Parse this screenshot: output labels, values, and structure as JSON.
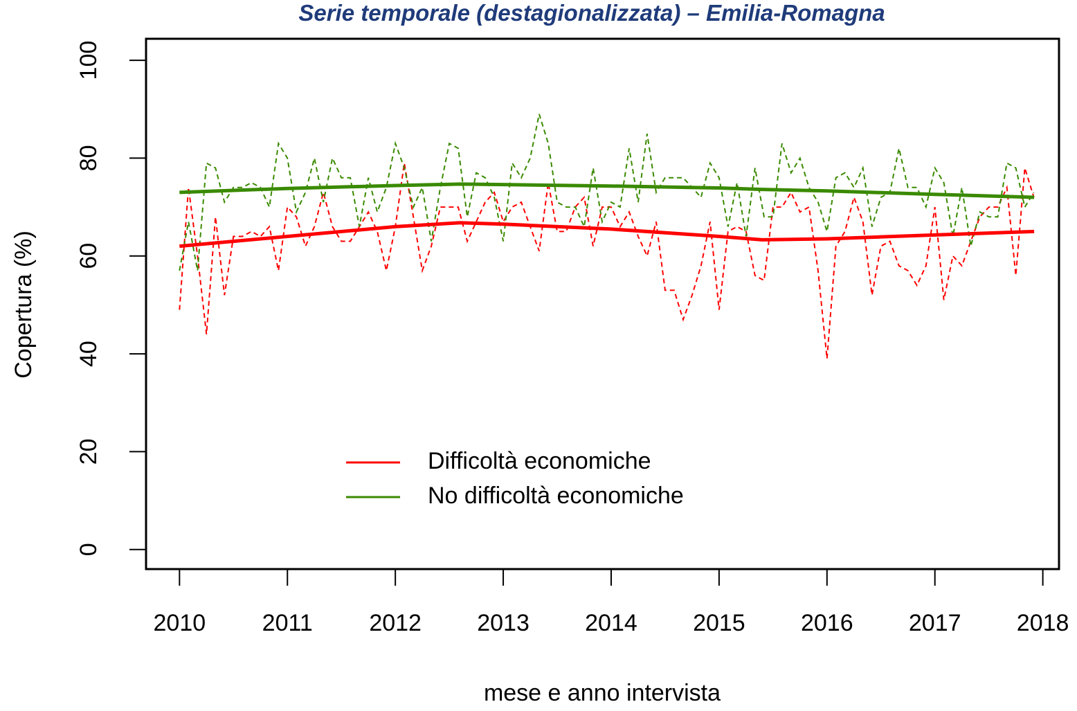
{
  "chart_data": {
    "type": "line",
    "title": "Serie temporale (destagionalizzata) – Emilia-Romagna",
    "x_label": "mese e anno intervista",
    "y_label": "Copertura (%)",
    "x": [
      2010,
      2010.083,
      2010.167,
      2010.25,
      2010.333,
      2010.417,
      2010.5,
      2010.583,
      2010.667,
      2010.75,
      2010.833,
      2010.917,
      2011,
      2011.083,
      2011.167,
      2011.25,
      2011.333,
      2011.417,
      2011.5,
      2011.583,
      2011.667,
      2011.75,
      2011.833,
      2011.917,
      2012,
      2012.083,
      2012.167,
      2012.25,
      2012.333,
      2012.417,
      2012.5,
      2012.583,
      2012.667,
      2012.75,
      2012.833,
      2012.917,
      2013,
      2013.083,
      2013.167,
      2013.25,
      2013.333,
      2013.417,
      2013.5,
      2013.583,
      2013.667,
      2013.75,
      2013.833,
      2013.917,
      2014,
      2014.083,
      2014.167,
      2014.25,
      2014.333,
      2014.417,
      2014.5,
      2014.583,
      2014.667,
      2014.75,
      2014.833,
      2014.917,
      2015,
      2015.083,
      2015.167,
      2015.25,
      2015.333,
      2015.417,
      2015.5,
      2015.583,
      2015.667,
      2015.75,
      2015.833,
      2015.917,
      2016,
      2016.083,
      2016.167,
      2016.25,
      2016.333,
      2016.417,
      2016.5,
      2016.583,
      2016.667,
      2016.75,
      2016.833,
      2016.917,
      2017,
      2017.083,
      2017.167,
      2017.25,
      2017.333,
      2017.417,
      2017.5,
      2017.583,
      2017.667,
      2017.75,
      2017.833,
      2017.917
    ],
    "series": [
      {
        "name": "Difficoltà economiche",
        "color": "#ff0000",
        "values": [
          49,
          74,
          60,
          44,
          68,
          52,
          64,
          64,
          65,
          64,
          66,
          57,
          70,
          68,
          62,
          66,
          73,
          66,
          63,
          63,
          66,
          69,
          65,
          57,
          66,
          79,
          68,
          57,
          62,
          70,
          70,
          70,
          63,
          67,
          71,
          73,
          67,
          70,
          71,
          66,
          61,
          75,
          65,
          65,
          70,
          72,
          62,
          70,
          70,
          66,
          69,
          64,
          60,
          67,
          53,
          53,
          47,
          52,
          58,
          67,
          49,
          65,
          66,
          65,
          56,
          55,
          70,
          70,
          73,
          69,
          70,
          57,
          39,
          62,
          65,
          72,
          67,
          52,
          62,
          63,
          58,
          57,
          54,
          58,
          70,
          51,
          60,
          58,
          63,
          68,
          70,
          70,
          74,
          56,
          78,
          72
        ],
        "trend": {
          "x": [
            2010,
            2011,
            2012,
            2012.6,
            2013,
            2014,
            2015,
            2015.4,
            2016,
            2017,
            2017.92
          ],
          "values": [
            62,
            64,
            66,
            66.8,
            66.5,
            65.5,
            64,
            63.3,
            63.5,
            64.3,
            65
          ]
        }
      },
      {
        "name": "No difficoltà economiche",
        "color": "#3a8a00",
        "values": [
          57,
          67,
          57,
          79,
          78,
          71,
          74,
          74,
          75,
          74,
          70,
          83,
          80,
          69,
          73,
          80,
          71,
          80,
          76,
          76,
          66,
          76,
          69,
          74,
          83,
          78,
          70,
          74,
          63,
          74,
          83,
          82,
          68,
          77,
          76,
          72,
          63,
          79,
          76,
          80,
          89,
          83,
          71,
          70,
          70,
          66,
          78,
          67,
          71,
          70,
          82,
          71,
          85,
          73,
          76,
          76,
          76,
          74,
          72,
          79,
          76,
          66,
          75,
          64,
          78,
          68,
          68,
          83,
          77,
          80,
          74,
          71,
          65,
          76,
          77,
          74,
          78,
          66,
          72,
          73,
          82,
          74,
          74,
          70,
          78,
          75,
          64,
          74,
          62,
          69,
          68,
          68,
          79,
          78,
          70,
          73
        ],
        "trend": {
          "x": [
            2010,
            2011,
            2012,
            2012.6,
            2013,
            2014,
            2015,
            2015.4,
            2016,
            2017,
            2017.92
          ],
          "values": [
            73,
            73.8,
            74.4,
            74.7,
            74.6,
            74.3,
            73.9,
            73.6,
            73.3,
            72.6,
            72
          ]
        }
      }
    ],
    "xlim": [
      2009.69,
      2018.15
    ],
    "ylim": [
      -4,
      104.4
    ],
    "xticks": [
      2010,
      2011,
      2012,
      2013,
      2014,
      2015,
      2016,
      2017,
      2018
    ],
    "yticks": [
      0,
      20,
      40,
      60,
      80,
      100
    ]
  }
}
